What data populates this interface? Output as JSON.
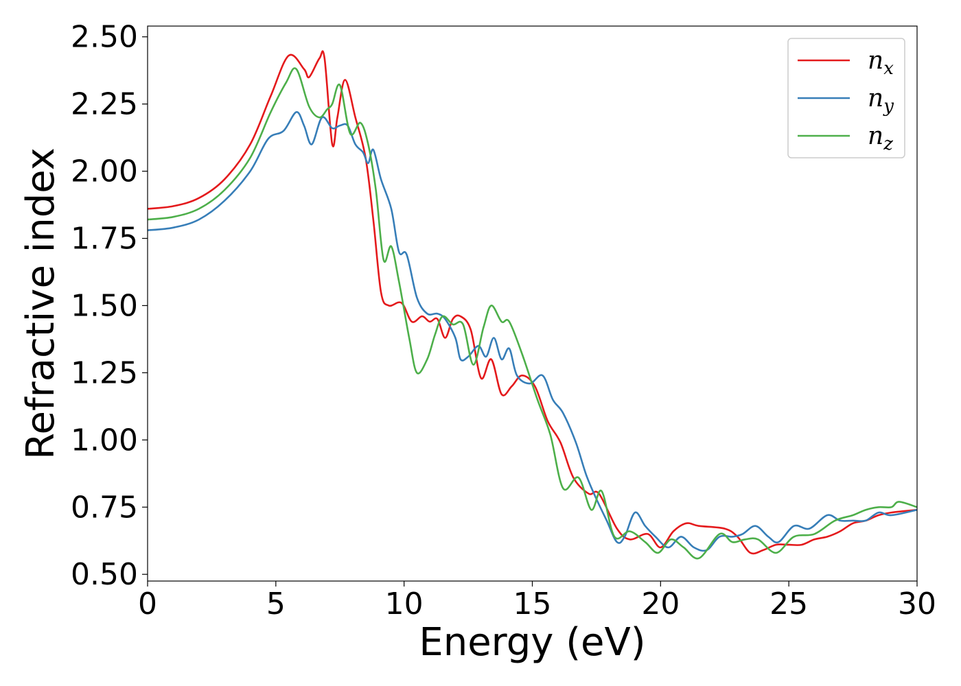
{
  "chart_data": {
    "type": "line",
    "xlabel": "Energy (eV)",
    "ylabel": "Refractive index",
    "xlim": [
      0,
      30
    ],
    "ylim": [
      0.475,
      2.54
    ],
    "xticks": [
      0,
      5,
      10,
      15,
      20,
      25,
      30
    ],
    "xtick_labels": [
      "0",
      "5",
      "10",
      "15",
      "20",
      "25",
      "30"
    ],
    "yticks": [
      0.5,
      0.75,
      1.0,
      1.25,
      1.5,
      1.75,
      2.0,
      2.25,
      2.5
    ],
    "ytick_labels": [
      "0.50",
      "0.75",
      "1.00",
      "1.25",
      "1.50",
      "1.75",
      "2.00",
      "2.25",
      "2.50"
    ],
    "grid": false,
    "legend_position": "top-right",
    "series": [
      {
        "name": "n_x",
        "label_main": "n",
        "label_sub": "x",
        "color": "#e41a1c",
        "points": [
          [
            0,
            1.86
          ],
          [
            1,
            1.87
          ],
          [
            2,
            1.9
          ],
          [
            3,
            1.97
          ],
          [
            4,
            2.1
          ],
          [
            4.8,
            2.28
          ],
          [
            5.5,
            2.43
          ],
          [
            6.1,
            2.38
          ],
          [
            6.3,
            2.35
          ],
          [
            6.7,
            2.42
          ],
          [
            6.9,
            2.42
          ],
          [
            7.2,
            2.1
          ],
          [
            7.4,
            2.2
          ],
          [
            7.7,
            2.34
          ],
          [
            8.1,
            2.2
          ],
          [
            8.5,
            2.05
          ],
          [
            8.8,
            1.82
          ],
          [
            9.1,
            1.55
          ],
          [
            9.4,
            1.5
          ],
          [
            9.9,
            1.51
          ],
          [
            10.3,
            1.44
          ],
          [
            10.7,
            1.46
          ],
          [
            11.0,
            1.44
          ],
          [
            11.3,
            1.45
          ],
          [
            11.6,
            1.38
          ],
          [
            11.9,
            1.45
          ],
          [
            12.2,
            1.46
          ],
          [
            12.6,
            1.41
          ],
          [
            13.0,
            1.23
          ],
          [
            13.4,
            1.3
          ],
          [
            13.8,
            1.17
          ],
          [
            14.2,
            1.2
          ],
          [
            14.6,
            1.24
          ],
          [
            15.1,
            1.2
          ],
          [
            15.6,
            1.07
          ],
          [
            16.1,
            0.99
          ],
          [
            16.6,
            0.86
          ],
          [
            17.2,
            0.8
          ],
          [
            17.6,
            0.8
          ],
          [
            18.3,
            0.67
          ],
          [
            18.8,
            0.63
          ],
          [
            19.5,
            0.65
          ],
          [
            20.0,
            0.6
          ],
          [
            20.5,
            0.66
          ],
          [
            21.0,
            0.69
          ],
          [
            21.5,
            0.68
          ],
          [
            22.5,
            0.67
          ],
          [
            23.0,
            0.64
          ],
          [
            23.5,
            0.58
          ],
          [
            24.0,
            0.59
          ],
          [
            24.5,
            0.61
          ],
          [
            25.0,
            0.61
          ],
          [
            25.5,
            0.61
          ],
          [
            26.0,
            0.63
          ],
          [
            26.5,
            0.64
          ],
          [
            27.0,
            0.66
          ],
          [
            27.5,
            0.69
          ],
          [
            28.0,
            0.7
          ],
          [
            28.5,
            0.72
          ],
          [
            29.0,
            0.73
          ],
          [
            30,
            0.74
          ]
        ]
      },
      {
        "name": "n_y",
        "label_main": "n",
        "label_sub": "y",
        "color": "#377eb8",
        "points": [
          [
            0,
            1.78
          ],
          [
            1,
            1.79
          ],
          [
            2,
            1.82
          ],
          [
            3,
            1.89
          ],
          [
            4,
            2.0
          ],
          [
            4.7,
            2.12
          ],
          [
            5.3,
            2.15
          ],
          [
            5.8,
            2.22
          ],
          [
            6.1,
            2.17
          ],
          [
            6.4,
            2.1
          ],
          [
            6.8,
            2.2
          ],
          [
            7.2,
            2.16
          ],
          [
            7.5,
            2.17
          ],
          [
            7.8,
            2.17
          ],
          [
            8.1,
            2.1
          ],
          [
            8.4,
            2.07
          ],
          [
            8.6,
            2.03
          ],
          [
            8.8,
            2.08
          ],
          [
            9.1,
            1.97
          ],
          [
            9.5,
            1.86
          ],
          [
            9.8,
            1.7
          ],
          [
            10.1,
            1.69
          ],
          [
            10.5,
            1.53
          ],
          [
            10.9,
            1.47
          ],
          [
            11.3,
            1.47
          ],
          [
            11.6,
            1.45
          ],
          [
            12.0,
            1.38
          ],
          [
            12.2,
            1.3
          ],
          [
            12.5,
            1.31
          ],
          [
            12.9,
            1.35
          ],
          [
            13.2,
            1.31
          ],
          [
            13.5,
            1.38
          ],
          [
            13.8,
            1.3
          ],
          [
            14.1,
            1.34
          ],
          [
            14.4,
            1.24
          ],
          [
            14.9,
            1.21
          ],
          [
            15.4,
            1.24
          ],
          [
            15.8,
            1.15
          ],
          [
            16.2,
            1.1
          ],
          [
            16.7,
            0.99
          ],
          [
            17.1,
            0.87
          ],
          [
            17.5,
            0.78
          ],
          [
            17.9,
            0.7
          ],
          [
            18.3,
            0.62
          ],
          [
            18.6,
            0.64
          ],
          [
            19.0,
            0.73
          ],
          [
            19.4,
            0.68
          ],
          [
            19.8,
            0.64
          ],
          [
            20.3,
            0.6
          ],
          [
            20.8,
            0.64
          ],
          [
            21.3,
            0.6
          ],
          [
            21.8,
            0.59
          ],
          [
            22.3,
            0.64
          ],
          [
            22.8,
            0.64
          ],
          [
            23.2,
            0.65
          ],
          [
            23.7,
            0.68
          ],
          [
            24.2,
            0.64
          ],
          [
            24.6,
            0.62
          ],
          [
            25.2,
            0.68
          ],
          [
            25.8,
            0.67
          ],
          [
            26.5,
            0.72
          ],
          [
            27.0,
            0.7
          ],
          [
            27.5,
            0.7
          ],
          [
            28.0,
            0.7
          ],
          [
            28.5,
            0.73
          ],
          [
            29.0,
            0.72
          ],
          [
            30,
            0.74
          ]
        ]
      },
      {
        "name": "n_z",
        "label_main": "n",
        "label_sub": "z",
        "color": "#4daf4a",
        "points": [
          [
            0,
            1.82
          ],
          [
            1,
            1.83
          ],
          [
            2,
            1.86
          ],
          [
            3,
            1.93
          ],
          [
            4,
            2.05
          ],
          [
            4.8,
            2.22
          ],
          [
            5.4,
            2.33
          ],
          [
            5.8,
            2.38
          ],
          [
            6.3,
            2.24
          ],
          [
            6.7,
            2.2
          ],
          [
            7.0,
            2.23
          ],
          [
            7.2,
            2.25
          ],
          [
            7.5,
            2.32
          ],
          [
            7.9,
            2.14
          ],
          [
            8.3,
            2.18
          ],
          [
            8.6,
            2.1
          ],
          [
            8.9,
            1.93
          ],
          [
            9.2,
            1.67
          ],
          [
            9.5,
            1.72
          ],
          [
            9.8,
            1.59
          ],
          [
            10.2,
            1.38
          ],
          [
            10.5,
            1.25
          ],
          [
            10.9,
            1.3
          ],
          [
            11.2,
            1.39
          ],
          [
            11.5,
            1.46
          ],
          [
            11.9,
            1.43
          ],
          [
            12.3,
            1.43
          ],
          [
            12.7,
            1.28
          ],
          [
            13.1,
            1.42
          ],
          [
            13.4,
            1.5
          ],
          [
            13.8,
            1.44
          ],
          [
            14.1,
            1.44
          ],
          [
            14.6,
            1.32
          ],
          [
            15.2,
            1.15
          ],
          [
            15.7,
            1.02
          ],
          [
            16.2,
            0.82
          ],
          [
            16.8,
            0.86
          ],
          [
            17.3,
            0.74
          ],
          [
            17.7,
            0.81
          ],
          [
            18.2,
            0.64
          ],
          [
            18.8,
            0.66
          ],
          [
            19.4,
            0.62
          ],
          [
            19.9,
            0.58
          ],
          [
            20.4,
            0.63
          ],
          [
            20.9,
            0.6
          ],
          [
            21.5,
            0.56
          ],
          [
            22.3,
            0.65
          ],
          [
            22.8,
            0.62
          ],
          [
            23.3,
            0.63
          ],
          [
            23.8,
            0.63
          ],
          [
            24.5,
            0.58
          ],
          [
            25.2,
            0.64
          ],
          [
            26.0,
            0.65
          ],
          [
            26.8,
            0.7
          ],
          [
            27.5,
            0.72
          ],
          [
            28.0,
            0.74
          ],
          [
            28.5,
            0.75
          ],
          [
            29.0,
            0.75
          ],
          [
            29.3,
            0.77
          ],
          [
            30,
            0.75
          ]
        ]
      }
    ]
  }
}
